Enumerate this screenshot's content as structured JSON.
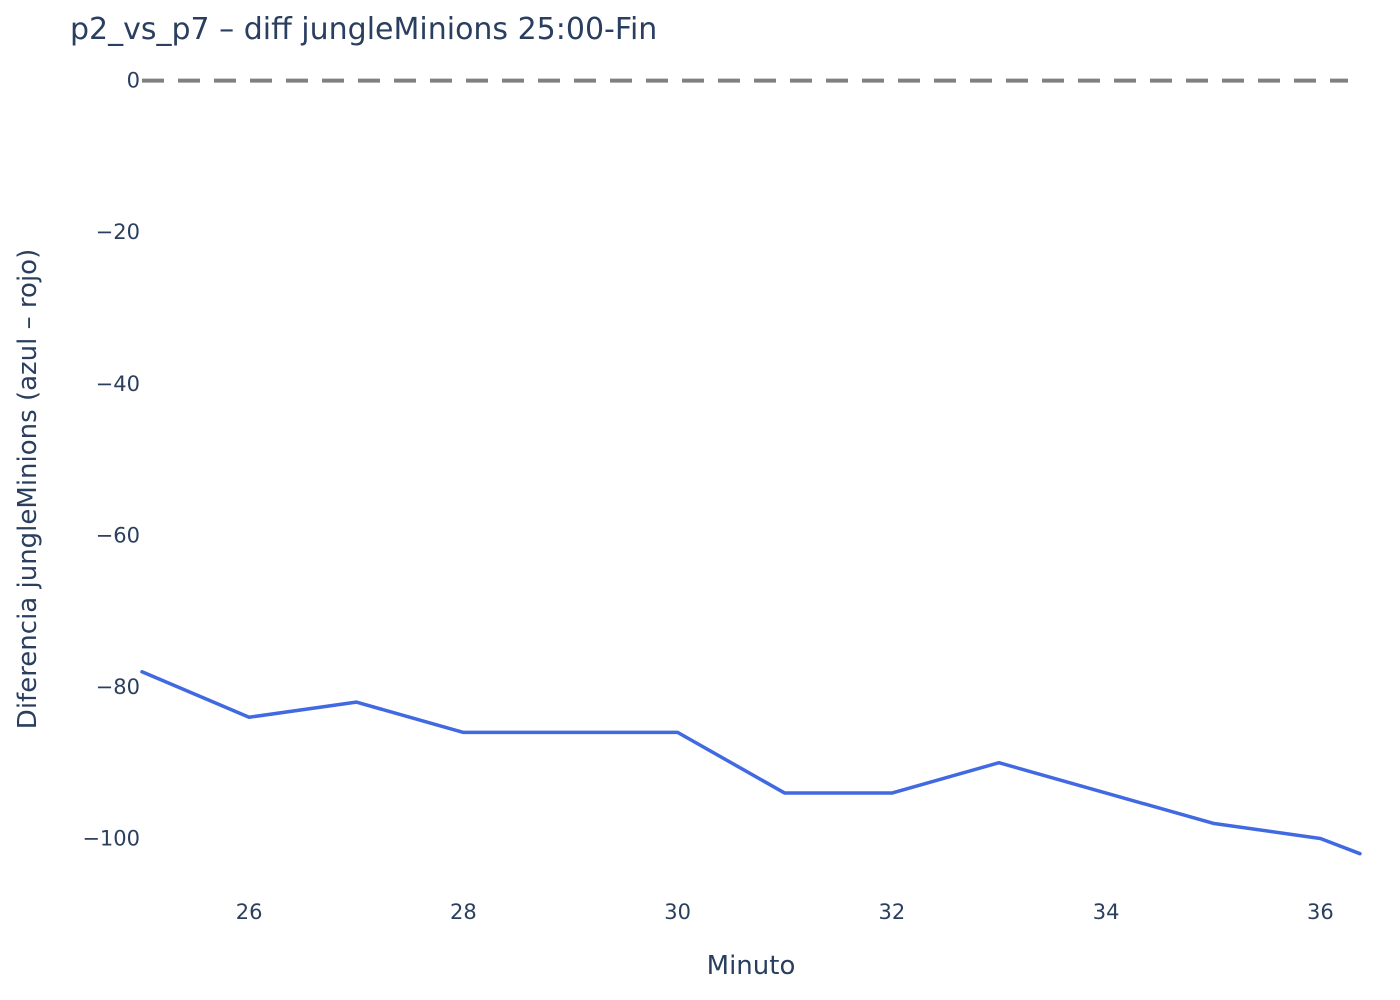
{
  "chart_data": {
    "type": "line",
    "title": "p2_vs_p7 – diff jungleMinions 25:00-Fin",
    "xlabel": "Minuto",
    "ylabel": "Diferencia jungleMinions (azul – rojo)",
    "xlim": [
      25,
      36.37
    ],
    "ylim": [
      -106,
      1
    ],
    "x_ticks": [
      26,
      28,
      30,
      32,
      34,
      36
    ],
    "x_tick_labels": [
      "26",
      "28",
      "30",
      "32",
      "34",
      "36"
    ],
    "y_ticks": [
      0,
      -20,
      -40,
      -60,
      -80,
      -100
    ],
    "y_tick_labels": [
      "0",
      "−20",
      "−40",
      "−60",
      "−80",
      "−100"
    ],
    "grid": false,
    "reference_line": {
      "y": 0,
      "style": "dashed",
      "color": "#808080"
    },
    "series": [
      {
        "color": "#4169e1",
        "x": [
          25,
          26,
          27,
          28,
          29,
          30,
          31,
          32,
          33,
          34,
          35,
          36,
          36.37
        ],
        "y": [
          -78,
          -84,
          -82,
          -86,
          -86,
          -86,
          -94,
          -94,
          -90,
          -94,
          -98,
          -100,
          -102
        ]
      }
    ]
  }
}
